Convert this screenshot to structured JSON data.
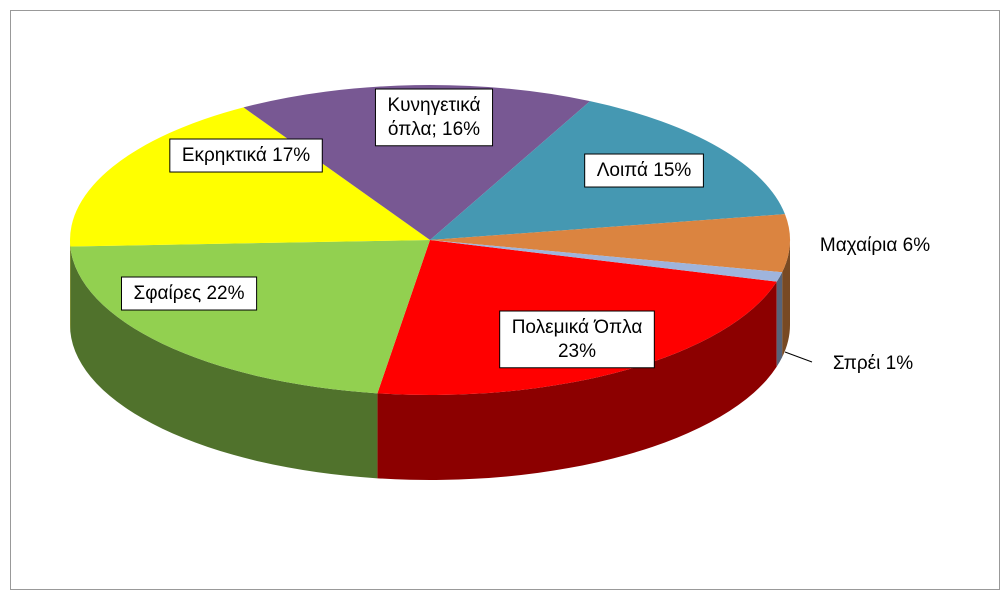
{
  "chart_data": {
    "type": "pie",
    "three_d": true,
    "values": [
      23,
      22,
      17,
      16,
      15,
      6,
      1
    ],
    "value_labels": [
      "Πολεμικά Όπλα\n23%",
      "Σφαίρες 22%",
      "Εκρηκτικά 17%",
      "Κυνηγετικά\nόπλα; 16%",
      "Λοιπά 15%",
      "Μαχαίρια 6%",
      "Σπρέι 1%"
    ],
    "colors": [
      "#ff0000",
      "#92d050",
      "#ffff00",
      "#785893",
      "#4598b2",
      "#db8440",
      "#9fb4dc"
    ]
  }
}
